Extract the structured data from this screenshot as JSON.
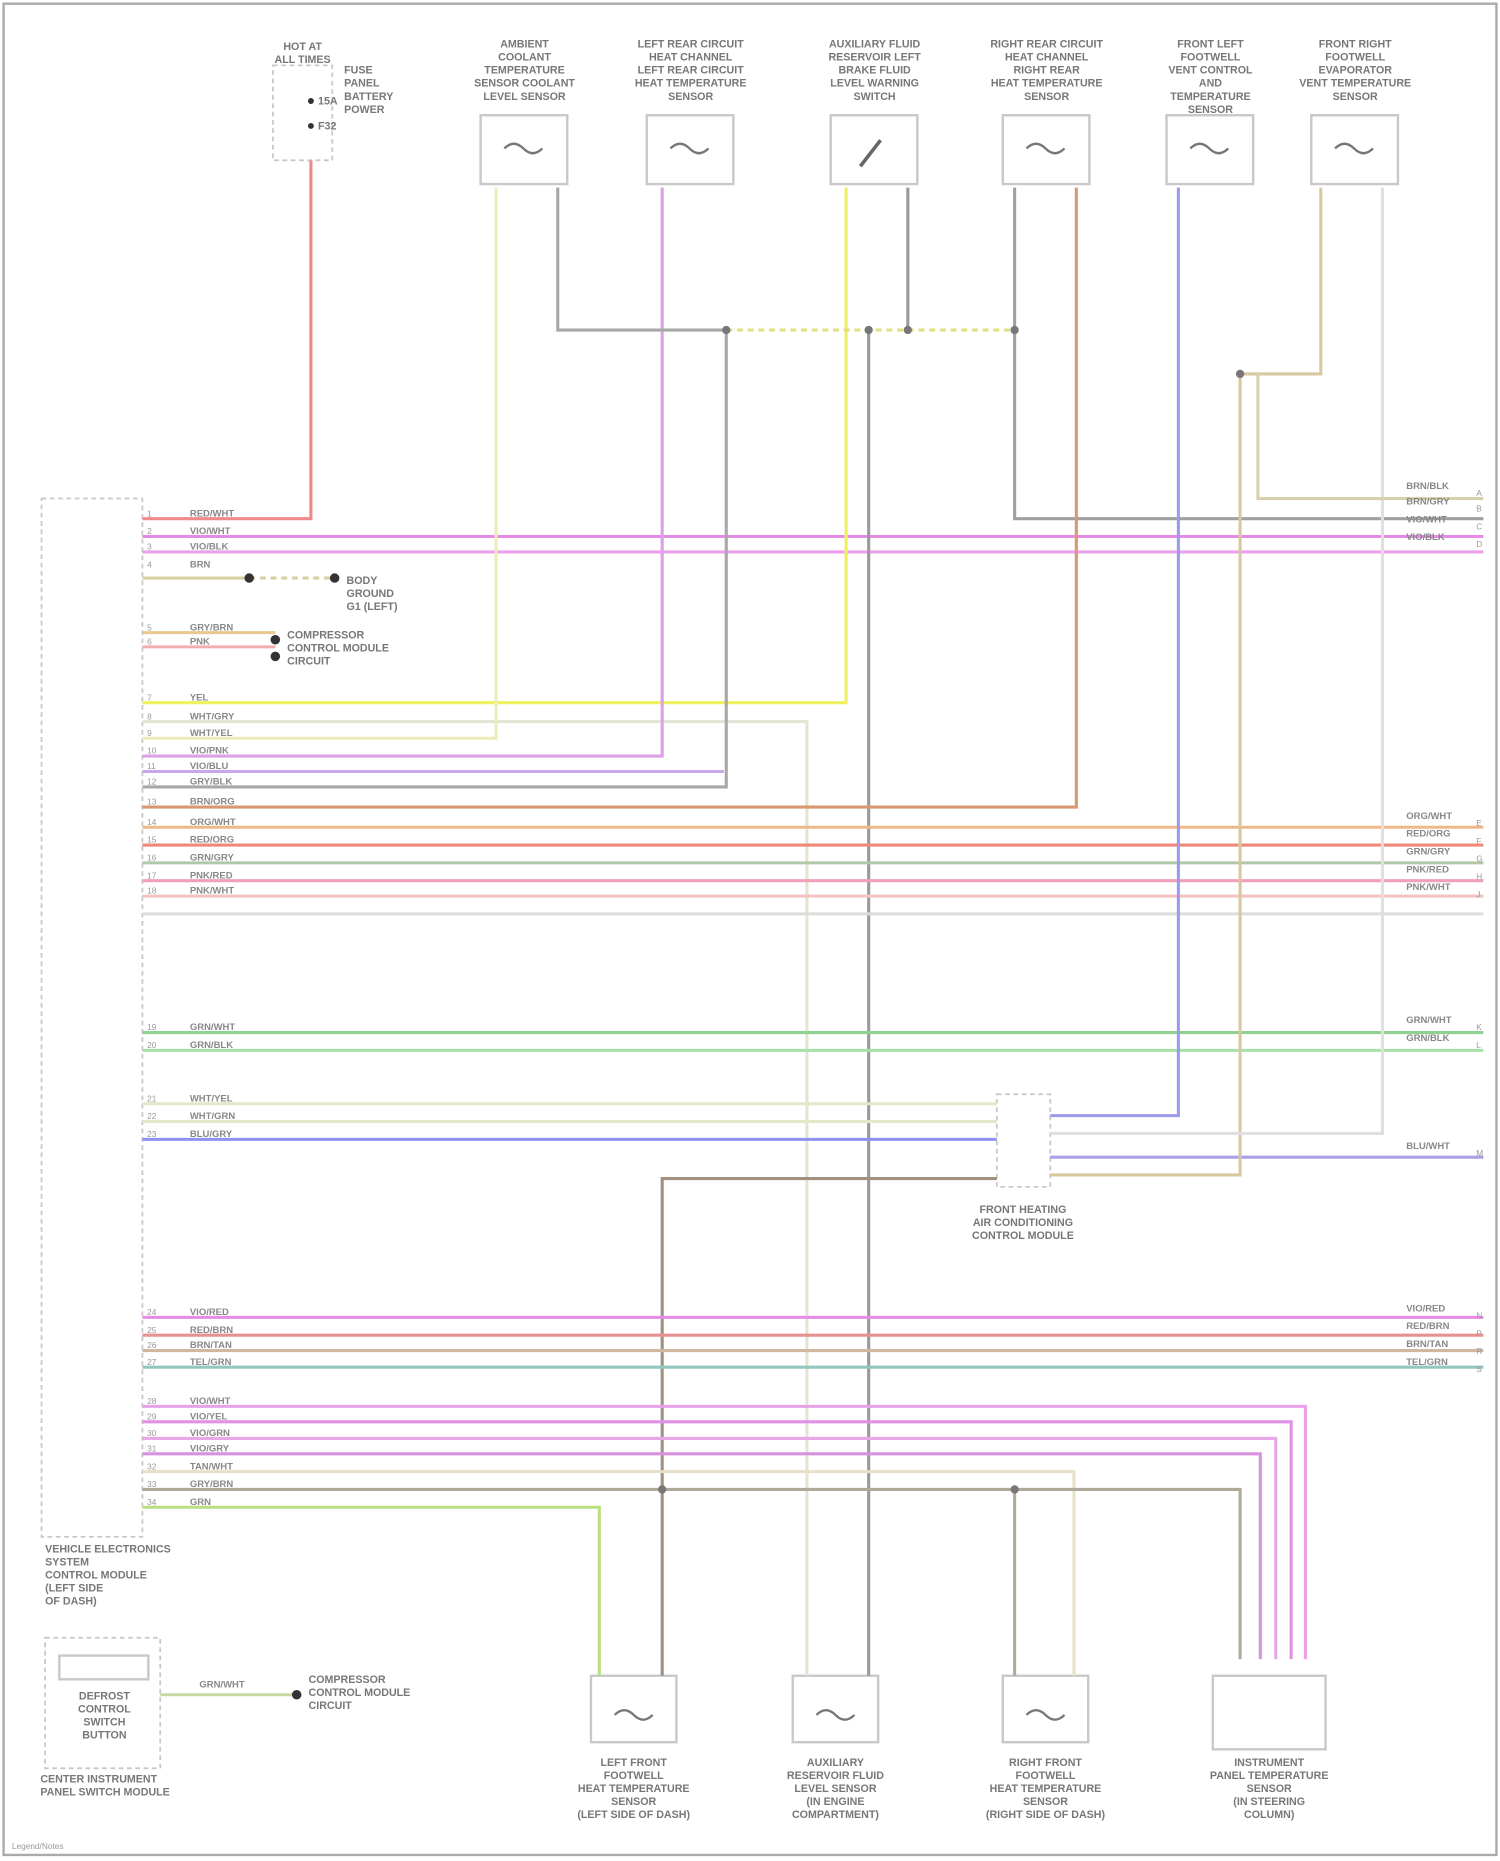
{
  "fuse": {
    "lines": [
      "HOT AT",
      "ALL TIMES"
    ],
    "sub": [
      "FUSE",
      "PANEL",
      "BATTERY",
      "POWER"
    ],
    "pins": [
      "15A",
      "F32"
    ]
  },
  "top_sensors": [
    {
      "lines": [
        "AMBIENT",
        "COOLANT",
        "TEMPERATURE",
        "SENSOR COOLANT",
        "LEVEL SENSOR"
      ]
    },
    {
      "lines": [
        "LEFT REAR CIRCUIT",
        "HEAT CHANNEL",
        "LEFT REAR CIRCUIT",
        "HEAT TEMPERATURE",
        "SENSOR"
      ]
    },
    {
      "lines": [
        "AUXILIARY FLUID",
        "RESERVOIR LEFT",
        "BRAKE FLUID",
        "LEVEL WARNING",
        "SWITCH"
      ]
    },
    {
      "lines": [
        "RIGHT REAR CIRCUIT",
        "HEAT CHANNEL",
        "RIGHT REAR",
        "HEAT TEMPERATURE",
        "SENSOR"
      ]
    },
    {
      "lines": [
        "FRONT LEFT",
        "FOOTWELL",
        "VENT CONTROL",
        "AND",
        "TEMPERATURE",
        "SENSOR"
      ]
    },
    {
      "lines": [
        "FRONT RIGHT",
        "FOOTWELL",
        "EVAPORATOR",
        "VENT TEMPERATURE",
        "SENSOR"
      ]
    }
  ],
  "module": {
    "lines": [
      "VEHICLE ELECTRONICS",
      "SYSTEM",
      "CONTROL MODULE",
      "(LEFT SIDE",
      "OF DASH)"
    ]
  },
  "module_pins": [
    {
      "pin": "1",
      "code": "RED/WHT"
    },
    {
      "pin": "2",
      "code": "VIO/WHT"
    },
    {
      "pin": "3",
      "code": "VIO/BLK"
    },
    {
      "pin": "4",
      "code": "BRN"
    },
    {
      "pin": "5",
      "code": "GRY/BRN"
    },
    {
      "pin": "6",
      "code": "PNK"
    },
    {
      "pin": "7",
      "code": "YEL"
    },
    {
      "pin": "8",
      "code": "WHT/GRY"
    },
    {
      "pin": "9",
      "code": "WHT/YEL"
    },
    {
      "pin": "10",
      "code": "VIO/PNK"
    },
    {
      "pin": "11",
      "code": "VIO/BLU"
    },
    {
      "pin": "12",
      "code": "GRY/BLK"
    },
    {
      "pin": "13",
      "code": "BRN/ORG"
    },
    {
      "pin": "14",
      "code": "ORG/WHT"
    },
    {
      "pin": "15",
      "code": "RED/ORG"
    },
    {
      "pin": "16",
      "code": "GRN/GRY"
    },
    {
      "pin": "17",
      "code": "PNK/RED"
    },
    {
      "pin": "18",
      "code": "PNK/WHT"
    },
    {
      "pin": "19",
      "code": "GRN/WHT"
    },
    {
      "pin": "20",
      "code": "GRN/BLK"
    },
    {
      "pin": "21",
      "code": "WHT/YEL"
    },
    {
      "pin": "22",
      "code": "WHT/GRN"
    },
    {
      "pin": "23",
      "code": "BLU/GRY"
    },
    {
      "pin": "24",
      "code": "VIO/RED"
    },
    {
      "pin": "25",
      "code": "RED/BRN"
    },
    {
      "pin": "26",
      "code": "BRN/TAN"
    },
    {
      "pin": "27",
      "code": "TEL/GRN"
    },
    {
      "pin": "28",
      "code": "VIO/WHT"
    },
    {
      "pin": "29",
      "code": "VIO/YEL"
    },
    {
      "pin": "30",
      "code": "VIO/GRN"
    },
    {
      "pin": "31",
      "code": "VIO/GRY"
    },
    {
      "pin": "32",
      "code": "TAN/WHT"
    },
    {
      "pin": "33",
      "code": "GRY/BRN"
    },
    {
      "pin": "34",
      "code": "GRN"
    }
  ],
  "right_labels": [
    {
      "code": "BRN/BLK",
      "pin": "A"
    },
    {
      "code": "BRN/GRY",
      "pin": "B"
    },
    {
      "code": "VIO/WHT",
      "pin": "C"
    },
    {
      "code": "VIO/BLK",
      "pin": "D"
    },
    {
      "code": "ORG/WHT",
      "pin": "E"
    },
    {
      "code": "RED/ORG",
      "pin": "F"
    },
    {
      "code": "GRN/GRY",
      "pin": "G"
    },
    {
      "code": "PNK/RED",
      "pin": "H"
    },
    {
      "code": "PNK/WHT",
      "pin": "J"
    },
    {
      "code": "GRN/WHT",
      "pin": "K"
    },
    {
      "code": "GRN/BLK",
      "pin": "L"
    },
    {
      "code": "BLU/WHT",
      "pin": "M"
    },
    {
      "code": "VIO/RED",
      "pin": "N"
    },
    {
      "code": "RED/BRN",
      "pin": "P"
    },
    {
      "code": "BRN/TAN",
      "pin": "R"
    },
    {
      "code": "TEL/GRN",
      "pin": "S"
    }
  ],
  "refs": {
    "ground": [
      "BODY",
      "GROUND",
      "G1 (LEFT)"
    ],
    "compressor": [
      "COMPRESSOR",
      "CONTROL MODULE",
      "CIRCUIT"
    ],
    "defrost_target": [
      "COMPRESSOR",
      "CONTROL MODULE",
      "CIRCUIT"
    ]
  },
  "hvac_module": {
    "lines": [
      "FRONT HEATING",
      "AIR CONDITIONING",
      "CONTROL MODULE"
    ]
  },
  "bottom_sensors": [
    {
      "lines": [
        "LEFT FRONT",
        "FOOTWELL",
        "HEAT TEMPERATURE",
        "SENSOR",
        "(LEFT SIDE OF DASH)"
      ]
    },
    {
      "lines": [
        "AUXILIARY",
        "RESERVOIR FLUID",
        "LEVEL SENSOR",
        "(IN ENGINE",
        "COMPARTMENT)"
      ]
    },
    {
      "lines": [
        "RIGHT FRONT",
        "FOOTWELL",
        "HEAT TEMPERATURE",
        "SENSOR",
        "(RIGHT SIDE OF DASH)"
      ]
    },
    {
      "lines": [
        "INSTRUMENT",
        "PANEL TEMPERATURE",
        "SENSOR",
        "(IN STEERING",
        "COLUMN)"
      ]
    }
  ],
  "defrost_switch": {
    "lines": [
      "DEFROST",
      "CONTROL",
      "SWITCH",
      "BUTTON"
    ],
    "caption": [
      "CENTER INSTRUMENT",
      "PANEL SWITCH MODULE"
    ],
    "wire": "GRN/WHT"
  },
  "footer": "Legend/Notes"
}
